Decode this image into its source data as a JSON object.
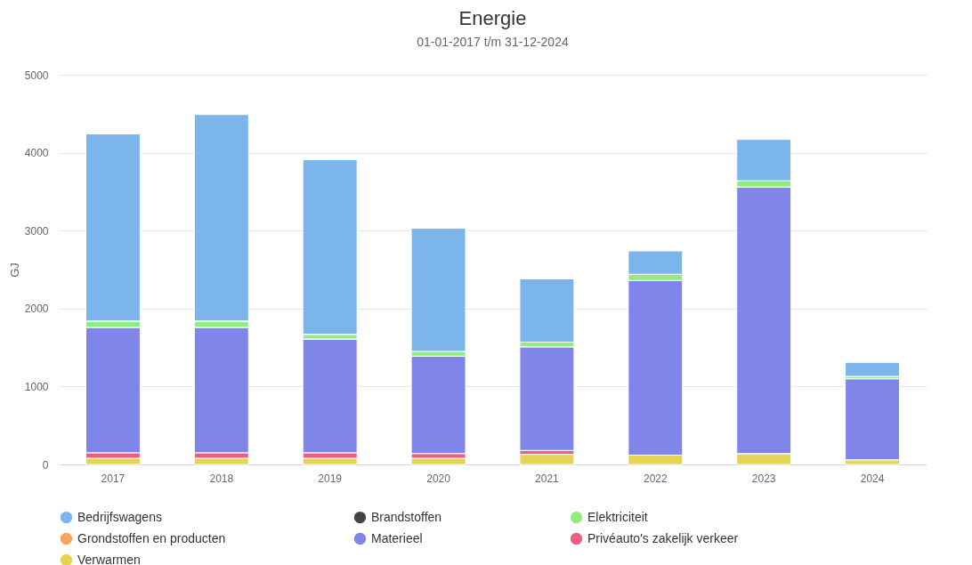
{
  "chart_data": {
    "type": "bar",
    "title": "Energie",
    "subtitle": "01-01-2017 t/m 31-12-2024",
    "ylabel": "GJ",
    "categories": [
      "2017",
      "2018",
      "2019",
      "2020",
      "2021",
      "2022",
      "2023",
      "2024"
    ],
    "stacked": true,
    "ylim": [
      0,
      5000
    ],
    "yticks": [
      0,
      1000,
      2000,
      3000,
      4000,
      5000
    ],
    "grid": "y",
    "legend": "bottom",
    "series": [
      {
        "name": "Verwarmen",
        "color": "#e4d354",
        "values": [
          80,
          80,
          80,
          80,
          130,
          120,
          140,
          60
        ]
      },
      {
        "name": "Privéauto's zakelijk verkeer",
        "color": "#f15c80",
        "values": [
          70,
          70,
          70,
          60,
          50,
          0,
          0,
          0
        ]
      },
      {
        "name": "Materieel",
        "color": "#8085e9",
        "values": [
          1610,
          1610,
          1460,
          1250,
          1330,
          2240,
          3420,
          1040
        ]
      },
      {
        "name": "Grondstoffen en producten",
        "color": "#f7a35c",
        "values": [
          0,
          0,
          0,
          0,
          0,
          0,
          0,
          0
        ]
      },
      {
        "name": "Elektriciteit",
        "color": "#90ed7d",
        "values": [
          80,
          80,
          60,
          60,
          60,
          80,
          80,
          30
        ]
      },
      {
        "name": "Brandstoffen",
        "color": "#434348",
        "values": [
          0,
          0,
          0,
          0,
          0,
          0,
          0,
          0
        ]
      },
      {
        "name": "Bedrijfswagens",
        "color": "#7cb5ec",
        "values": [
          2400,
          2650,
          2240,
          1580,
          810,
          300,
          530,
          180
        ]
      }
    ]
  }
}
